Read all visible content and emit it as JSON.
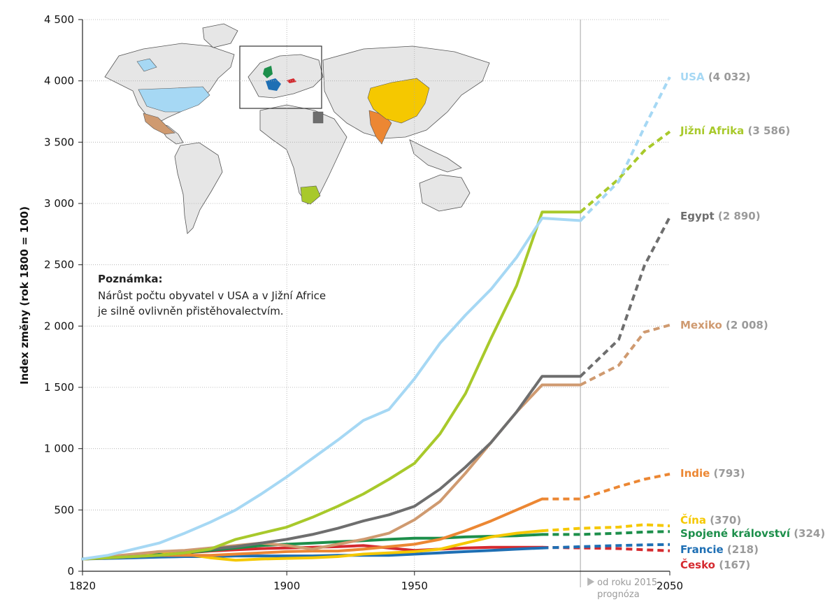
{
  "chart_data": {
    "type": "line",
    "ylabel": "Index změny (rok 1800 = 100)",
    "ylim": [
      0,
      4500
    ],
    "xlim": [
      1820,
      2050
    ],
    "y_ticks": [
      0,
      500,
      1000,
      1500,
      2000,
      2500,
      3000,
      3500,
      4000,
      4500
    ],
    "y_tick_labels": [
      "0",
      "500",
      "1 000",
      "1 500",
      "2 000",
      "2 500",
      "3 000",
      "3 500",
      "4 000",
      "4 500"
    ],
    "x_ticks": [
      1820,
      1900,
      1950,
      2050
    ],
    "x_tick_labels": [
      "1820",
      "1900",
      "1950",
      "2050"
    ],
    "grid": "dotted, horizontal and vertical",
    "forecast_start": 2015,
    "forecast_note": [
      "od roku 2015",
      "prognóza"
    ],
    "note": {
      "title": "Poznámka:",
      "lines": [
        "Nárůst počtu obyvatel v USA a v Jižní Africe",
        "je silně ovlivněn přistěhovalectvím."
      ]
    },
    "map_legend": "world map with highlighted countries colored by series",
    "series": [
      {
        "name": "USA",
        "color": "#a6d8f4",
        "final_label": "(4 032)",
        "x": [
          1820,
          1830,
          1840,
          1850,
          1860,
          1870,
          1880,
          1890,
          1900,
          1910,
          1920,
          1930,
          1940,
          1950,
          1960,
          1970,
          1980,
          1990,
          2000,
          2015,
          2030,
          2040,
          2050
        ],
        "values": [
          100,
          130,
          180,
          230,
          310,
          400,
          500,
          630,
          770,
          920,
          1070,
          1230,
          1320,
          1570,
          1860,
          2090,
          2300,
          2560,
          2880,
          2860,
          3180,
          3620,
          4032
        ],
        "forecast_from_index": 19
      },
      {
        "name": "Jižní Afrika",
        "color": "#a8c92b",
        "final_label": "(3 586)",
        "x": [
          1820,
          1830,
          1840,
          1850,
          1860,
          1870,
          1880,
          1890,
          1900,
          1910,
          1920,
          1930,
          1940,
          1950,
          1960,
          1970,
          1980,
          1990,
          2000,
          2015,
          2030,
          2040,
          2050
        ],
        "values": [
          100,
          110,
          120,
          130,
          150,
          180,
          260,
          310,
          360,
          440,
          530,
          630,
          750,
          880,
          1120,
          1450,
          1900,
          2330,
          2930,
          2930,
          3200,
          3430,
          3586
        ],
        "forecast_from_index": 19
      },
      {
        "name": "Egypt",
        "color": "#6e6e6e",
        "final_label": "(2 890)",
        "x": [
          1820,
          1830,
          1840,
          1850,
          1860,
          1870,
          1880,
          1890,
          1900,
          1910,
          1920,
          1930,
          1940,
          1950,
          1960,
          1970,
          1980,
          1990,
          2000,
          2015,
          2030,
          2040,
          2050
        ],
        "values": [
          100,
          110,
          120,
          130,
          150,
          180,
          200,
          230,
          260,
          300,
          350,
          410,
          460,
          530,
          670,
          850,
          1050,
          1300,
          1590,
          1590,
          1890,
          2490,
          2890
        ],
        "forecast_from_index": 19
      },
      {
        "name": "Mexiko",
        "color": "#cf9a70",
        "final_label": "(2 008)",
        "x": [
          1820,
          1830,
          1840,
          1850,
          1860,
          1870,
          1880,
          1890,
          1900,
          1910,
          1920,
          1930,
          1940,
          1950,
          1960,
          1970,
          1980,
          1990,
          2000,
          2015,
          2030,
          2040,
          2050
        ],
        "values": [
          100,
          120,
          140,
          160,
          170,
          190,
          210,
          230,
          210,
          180,
          220,
          260,
          310,
          420,
          570,
          800,
          1050,
          1300,
          1520,
          1520,
          1680,
          1950,
          2008
        ],
        "forecast_from_index": 19
      },
      {
        "name": "Indie",
        "color": "#ec8733",
        "final_label": "(793)",
        "x": [
          1820,
          1830,
          1840,
          1850,
          1860,
          1870,
          1880,
          1890,
          1900,
          1910,
          1920,
          1930,
          1940,
          1950,
          1960,
          1970,
          1980,
          1990,
          2000,
          2015,
          2030,
          2040,
          2050
        ],
        "values": [
          100,
          110,
          120,
          130,
          130,
          130,
          140,
          150,
          160,
          165,
          165,
          180,
          200,
          220,
          260,
          330,
          410,
          500,
          590,
          590,
          690,
          750,
          793
        ],
        "forecast_from_index": 18
      },
      {
        "name": "Čína",
        "color": "#f5c800",
        "final_label": "(370)",
        "x": [
          1820,
          1830,
          1840,
          1850,
          1860,
          1870,
          1880,
          1890,
          1900,
          1910,
          1920,
          1930,
          1940,
          1950,
          1960,
          1970,
          1980,
          1990,
          2000,
          2015,
          2030,
          2040,
          2050
        ],
        "values": [
          100,
          110,
          130,
          160,
          140,
          110,
          90,
          100,
          105,
          110,
          120,
          140,
          150,
          160,
          180,
          230,
          280,
          310,
          330,
          350,
          360,
          380,
          370
        ],
        "forecast_from_index": 18
      },
      {
        "name": "Spojené království",
        "color": "#1d8f4b",
        "final_label": "(324)",
        "x": [
          1820,
          1830,
          1840,
          1850,
          1860,
          1870,
          1880,
          1890,
          1900,
          1910,
          1920,
          1930,
          1940,
          1950,
          1960,
          1970,
          1980,
          1990,
          2000,
          2015,
          2030,
          2040,
          2050
        ],
        "values": [
          100,
          120,
          130,
          140,
          150,
          170,
          190,
          210,
          220,
          230,
          240,
          250,
          260,
          270,
          270,
          280,
          285,
          290,
          300,
          300,
          310,
          320,
          324
        ],
        "forecast_from_index": 18
      },
      {
        "name": "Francie",
        "color": "#1e6fb4",
        "final_label": "(218)",
        "x": [
          1820,
          1830,
          1840,
          1850,
          1860,
          1870,
          1880,
          1890,
          1900,
          1910,
          1920,
          1930,
          1940,
          1950,
          1960,
          1970,
          1980,
          1990,
          2000,
          2015,
          2030,
          2040,
          2050
        ],
        "values": [
          100,
          105,
          110,
          115,
          120,
          120,
          125,
          125,
          125,
          125,
          130,
          130,
          130,
          140,
          150,
          160,
          170,
          180,
          190,
          200,
          210,
          215,
          218
        ],
        "forecast_from_index": 18
      },
      {
        "name": "Česko",
        "color": "#d52a2f",
        "final_label": "(167)",
        "x": [
          1820,
          1830,
          1840,
          1850,
          1860,
          1870,
          1880,
          1890,
          1900,
          1910,
          1920,
          1930,
          1940,
          1950,
          1960,
          1970,
          1980,
          1990,
          2000,
          2015,
          2030,
          2040,
          2050
        ],
        "values": [
          100,
          110,
          120,
          135,
          150,
          165,
          175,
          185,
          190,
          195,
          200,
          210,
          190,
          170,
          180,
          190,
          195,
          195,
          195,
          190,
          185,
          175,
          167
        ],
        "forecast_from_index": 18
      }
    ]
  }
}
